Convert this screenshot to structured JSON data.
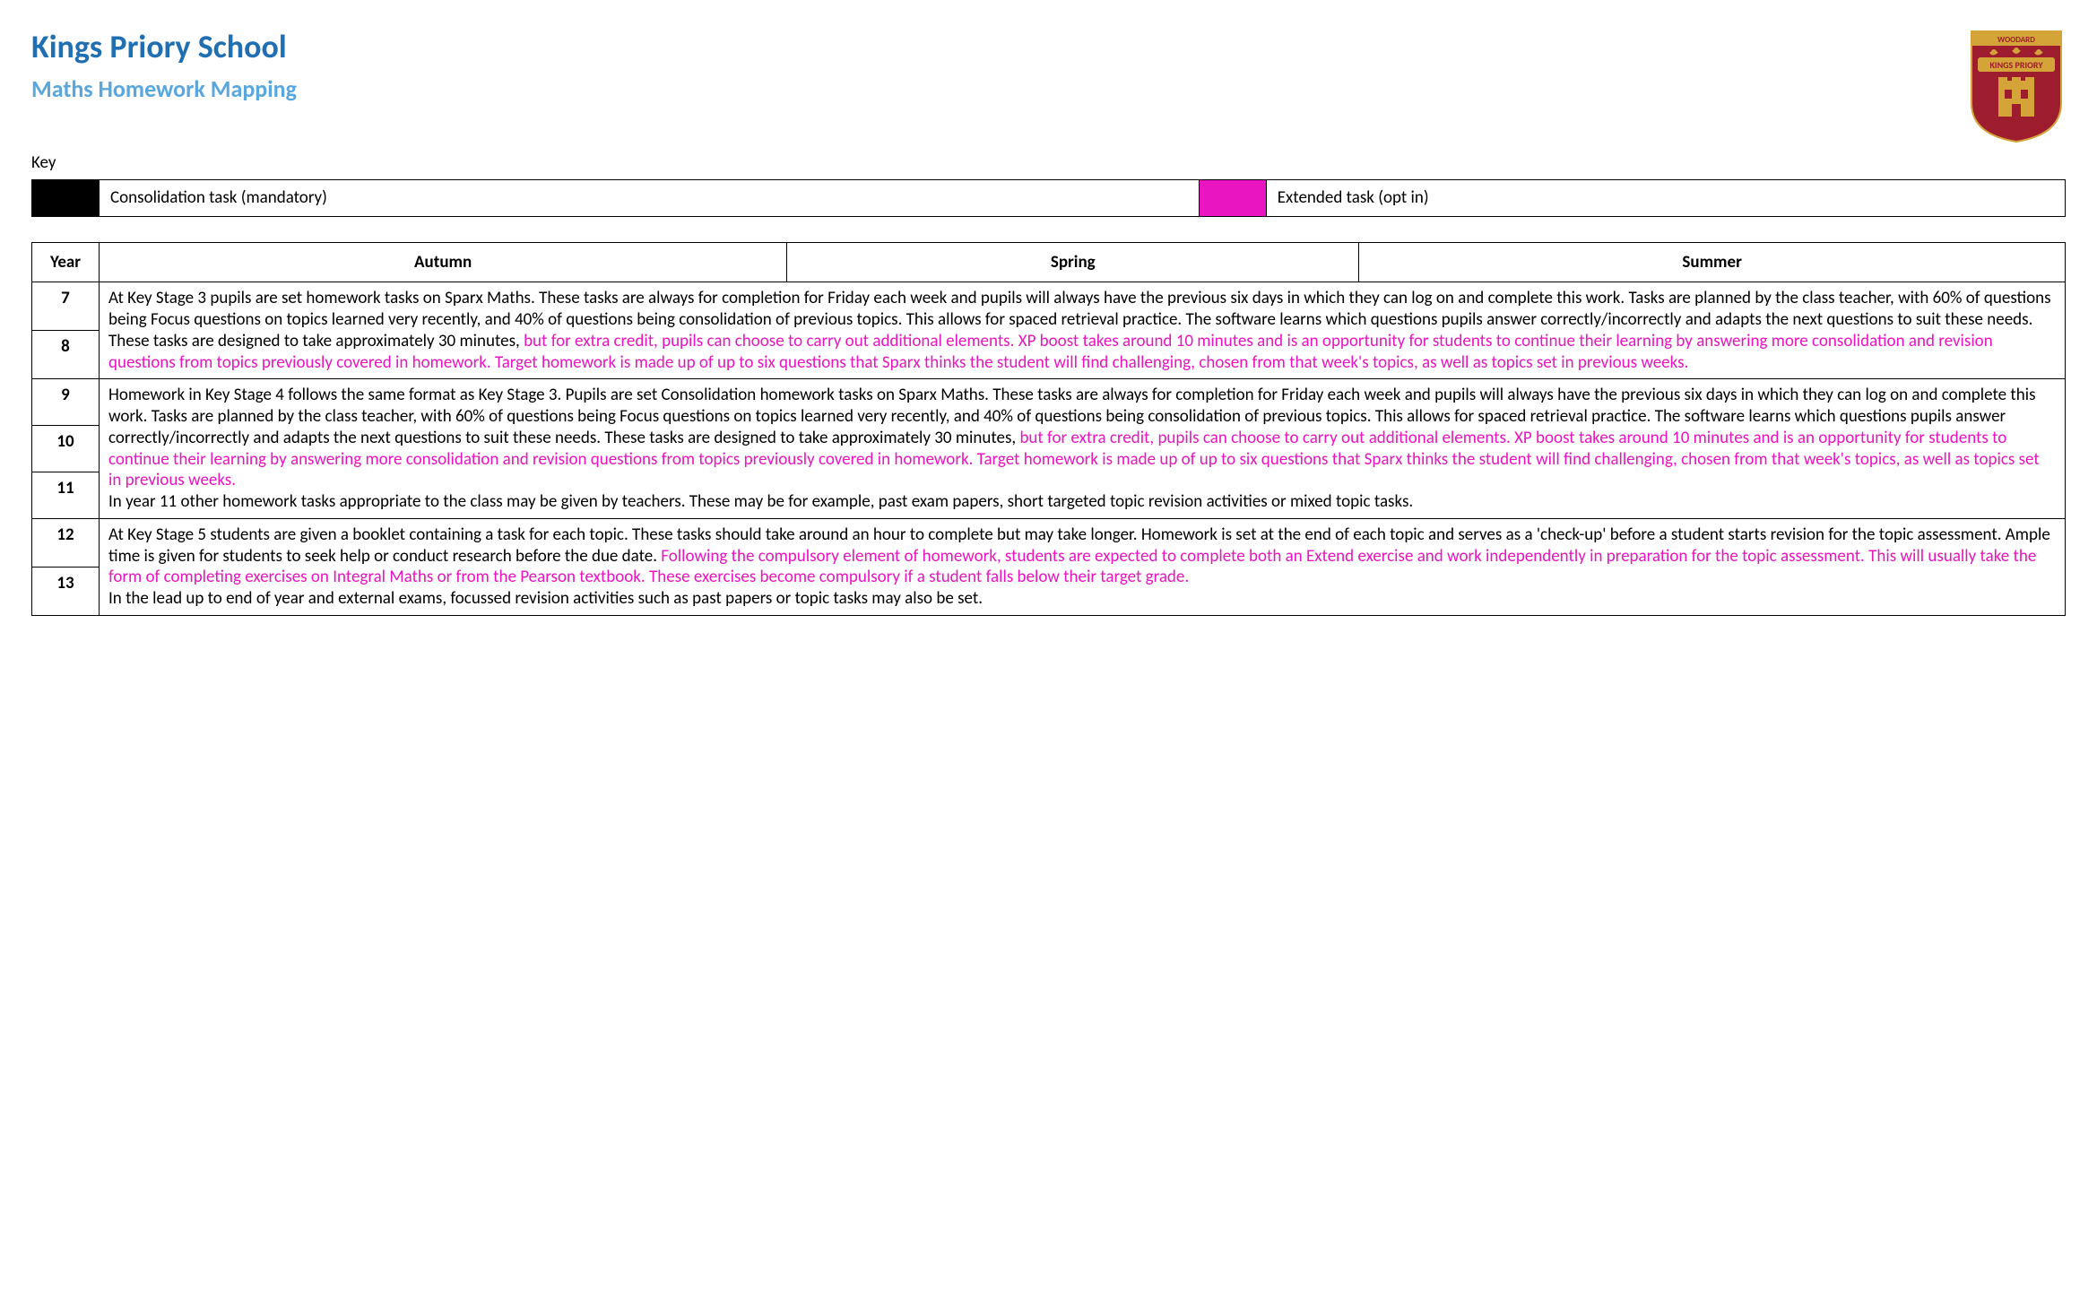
{
  "colors": {
    "title_blue": "#1f6fb2",
    "subtitle_blue": "#5aa7dd",
    "black": "#000000",
    "magenta": "#e815c1",
    "logo_bg": "#9d1c2e",
    "logo_gold": "#d4a438",
    "logo_text_top": "WOODARD",
    "logo_text_mid": "KINGS PRIORY"
  },
  "header": {
    "school": "Kings Priory School",
    "subtitle": "Maths Homework Mapping"
  },
  "key": {
    "label": "Key",
    "items": [
      {
        "swatch_color": "#000000",
        "text": "Consolidation task (mandatory)"
      },
      {
        "swatch_color": "#e815c1",
        "text": "Extended task (opt in)"
      }
    ]
  },
  "table": {
    "headers": {
      "year": "Year",
      "autumn": "Autumn",
      "spring": "Spring",
      "summer": "Summer"
    },
    "groups": [
      {
        "years": [
          "7",
          "8"
        ],
        "segments": [
          {
            "color": "black",
            "text": "At Key Stage 3 pupils are set homework tasks on Sparx Maths. These tasks are always for completion for Friday each week and pupils will always have the previous six days in which they can log on and complete this work. Tasks are planned by the class teacher, with 60% of questions being Focus questions on topics learned very recently, and 40% of questions being consolidation of previous topics. This allows for spaced retrieval practice.   The software learns which questions pupils answer correctly/incorrectly and adapts the next questions to suit these needs. These tasks are designed to take approximately 30 minutes, "
          },
          {
            "color": "magenta",
            "text": "but for extra credit, pupils can choose to carry out additional elements. XP boost takes around 10 minutes and is an opportunity for students to continue their learning by answering more consolidation and revision questions from topics previously covered in homework. Target homework is made up of up to six questions that Sparx thinks the student will find challenging, chosen from that week's topics, as well as topics set in previous weeks."
          }
        ]
      },
      {
        "years": [
          "9",
          "10",
          "11"
        ],
        "segments": [
          {
            "color": "black",
            "text": "Homework in Key Stage 4 follows the same format as Key Stage 3. Pupils are set Consolidation homework tasks on Sparx Maths. These tasks are always for completion for Friday each week and pupils will always have the previous six days in which they can log on and complete this work. Tasks are planned by the class teacher, with 60% of questions being Focus questions on topics learned very recently, and 40% of questions being consolidation of previous topics. This allows for spaced retrieval practice.   The software learns which questions pupils answer correctly/incorrectly and adapts the next questions to suit these needs. These tasks are designed to take approximately 30 minutes, "
          },
          {
            "color": "magenta",
            "text": "but for extra credit, pupils can choose to carry out additional elements. XP boost takes around 10 minutes and is an opportunity for students to continue their learning by answering more consolidation and revision questions from topics previously covered in homework. Target homework is made up of up to six questions that Sparx thinks the student will find challenging, chosen from that week's topics, as well as topics set in previous weeks."
          },
          {
            "color": "black",
            "break_before": true,
            "text": "In year 11 other homework tasks appropriate to the class may be given by teachers. These may be for example, past exam papers, short targeted topic revision activities or mixed topic tasks."
          }
        ]
      },
      {
        "years": [
          "12",
          "13"
        ],
        "segments": [
          {
            "color": "black",
            "text": "At Key Stage 5 students are given a booklet containing a task for each topic. These tasks should take around an hour to complete but may take longer. Homework is set at the end of each topic and serves as a 'check-up' before a student starts revision for the topic assessment. Ample time is given for students to seek help or conduct research before the due date. "
          },
          {
            "color": "magenta",
            "text": "Following the compulsory element of homework, students are expected to complete both an Extend exercise and work independently in preparation for the topic assessment. This will usually take the form of completing exercises on Integral Maths or from the Pearson textbook. These exercises become compulsory if a student falls below their target grade."
          },
          {
            "color": "black",
            "break_before": true,
            "text": "In the lead up to end of year and external exams, focussed revision activities such as past papers or topic tasks may also be set."
          }
        ]
      }
    ]
  }
}
